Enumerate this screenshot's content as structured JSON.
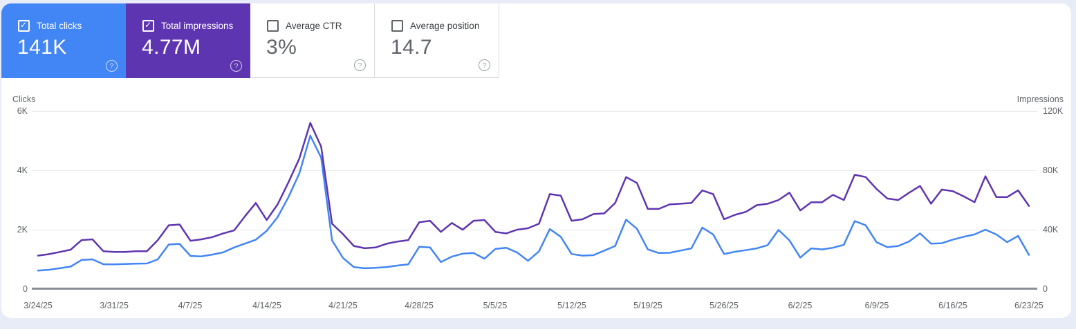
{
  "page": {
    "background": "#e8ecf6",
    "panel_background": "#ffffff"
  },
  "metric_cards": [
    {
      "label": "Total clicks",
      "value": "141K",
      "checked": true,
      "background": "#4285f4",
      "help_icon": "?"
    },
    {
      "label": "Total impressions",
      "value": "4.77M",
      "checked": true,
      "background": "#5e35b1",
      "help_icon": "?"
    },
    {
      "label": "Average CTR",
      "value": "3%",
      "checked": false,
      "background": "#ffffff",
      "help_icon": "?"
    },
    {
      "label": "Average position",
      "value": "14.7",
      "checked": false,
      "background": "#ffffff",
      "help_icon": "?"
    }
  ],
  "chart_data": {
    "type": "line",
    "grid": true,
    "legend_position": "none",
    "left_axis": {
      "title": "Clicks",
      "tick_labels": [
        "6K",
        "4K",
        "2K",
        "0"
      ],
      "tick_values": [
        6000,
        4000,
        2000,
        0
      ],
      "range": [
        0,
        6000
      ]
    },
    "right_axis": {
      "title": "Impressions",
      "tick_labels": [
        "120K",
        "80K",
        "40K",
        "0"
      ],
      "tick_values": [
        120000,
        80000,
        40000,
        0
      ],
      "range": [
        0,
        120000
      ]
    },
    "x_axis": {
      "start_date": "3/24/25",
      "end_date": "6/23/25",
      "interval": "daily",
      "tick_every_days": 7,
      "tick_labels": [
        "3/24/25",
        "3/31/25",
        "4/7/25",
        "4/14/25",
        "4/21/25",
        "4/28/25",
        "5/5/25",
        "5/12/25",
        "5/19/25",
        "5/26/25",
        "6/2/25",
        "6/9/25",
        "6/16/25",
        "6/23/25"
      ]
    },
    "series": [
      {
        "name": "Clicks",
        "axis": "left",
        "color": "#4285f4",
        "values": [
          620,
          650,
          700,
          755,
          980,
          1000,
          835,
          830,
          845,
          855,
          860,
          1000,
          1500,
          1520,
          1115,
          1100,
          1160,
          1235,
          1400,
          1530,
          1660,
          1960,
          2420,
          3100,
          3900,
          5170,
          4430,
          1640,
          1050,
          740,
          700,
          715,
          740,
          790,
          830,
          1420,
          1400,
          910,
          1090,
          1190,
          1215,
          1020,
          1350,
          1390,
          1230,
          950,
          1270,
          2020,
          1760,
          1180,
          1125,
          1140,
          1295,
          1450,
          2340,
          2030,
          1335,
          1215,
          1220,
          1295,
          1370,
          2070,
          1840,
          1180,
          1255,
          1310,
          1370,
          1480,
          1990,
          1640,
          1060,
          1370,
          1335,
          1390,
          1490,
          2290,
          2150,
          1580,
          1410,
          1450,
          1605,
          1875,
          1530,
          1545,
          1665,
          1760,
          1840,
          2000,
          1840,
          1580,
          1790,
          1150
        ]
      },
      {
        "name": "Impressions",
        "axis": "right",
        "color": "#5e35b1",
        "values": [
          22500,
          23500,
          25000,
          26500,
          33000,
          33500,
          25500,
          25000,
          25000,
          25500,
          25500,
          33000,
          43000,
          43500,
          32500,
          33500,
          35000,
          37500,
          39500,
          49000,
          58000,
          46500,
          57000,
          72000,
          88000,
          112000,
          96000,
          44000,
          37000,
          29000,
          27500,
          28000,
          30500,
          32000,
          33000,
          45000,
          46000,
          38500,
          44500,
          40000,
          46000,
          46500,
          38500,
          37500,
          40000,
          41000,
          44000,
          64000,
          63000,
          46000,
          47000,
          50500,
          51000,
          58000,
          75500,
          71500,
          54000,
          54000,
          57000,
          57500,
          58000,
          66500,
          64000,
          47000,
          50000,
          52000,
          56500,
          57500,
          60000,
          65000,
          53000,
          58500,
          58500,
          63500,
          60000,
          77000,
          75500,
          67500,
          61000,
          60000,
          65000,
          69500,
          57500,
          67000,
          66000,
          62500,
          58500,
          76000,
          62000,
          62000,
          66500,
          56000
        ]
      }
    ]
  }
}
